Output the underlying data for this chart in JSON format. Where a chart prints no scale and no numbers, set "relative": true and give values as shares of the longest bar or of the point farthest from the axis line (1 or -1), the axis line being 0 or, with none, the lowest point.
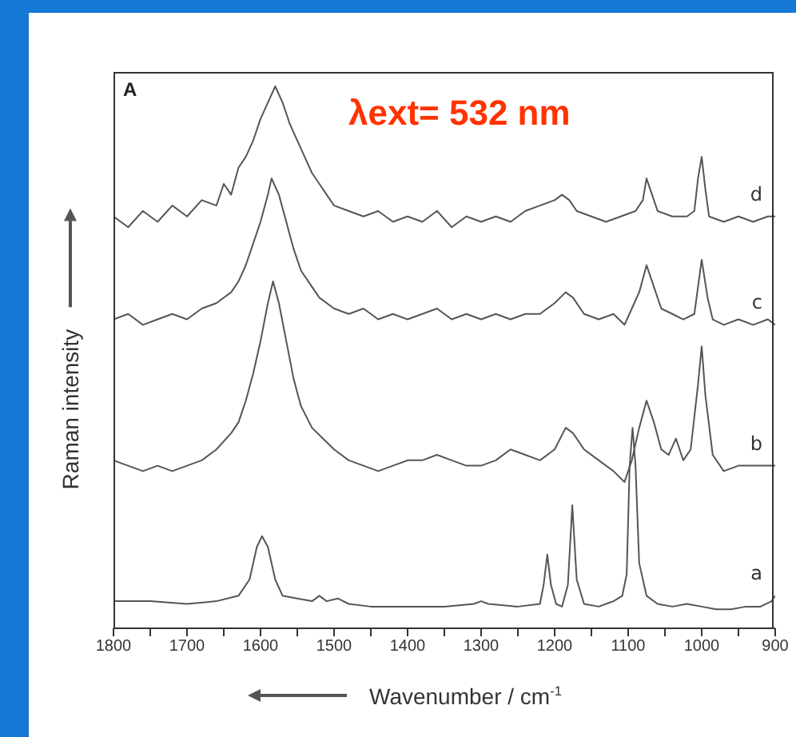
{
  "chart_data": {
    "type": "line",
    "relative": true,
    "xlabel": "Wavenumber / cm$^{-1}$",
    "ylabel": "Raman intensity",
    "annotations": [
      "A",
      "λext= 532 nm"
    ],
    "xlim": [
      1800,
      900
    ],
    "xticks": [
      1800,
      {
        "value": 1750,
        "label": null
      },
      1700,
      {
        "value": 1650,
        "label": null
      },
      1600,
      {
        "value": 1550,
        "label": null
      },
      1500,
      {
        "value": 1450,
        "label": null
      },
      1400,
      {
        "value": 1350,
        "label": null
      },
      1300,
      {
        "value": 1250,
        "label": null
      },
      1200,
      {
        "value": 1150,
        "label": null
      },
      1100,
      {
        "value": 1050,
        "label": null
      },
      1000,
      {
        "value": 950,
        "label": null
      },
      900
    ],
    "marker": "none",
    "line_style": "solid",
    "series": [
      {
        "name": "d",
        "color": "#555555",
        "x": [
          1800,
          1780,
          1760,
          1740,
          1720,
          1700,
          1680,
          1660,
          1650,
          1640,
          1630,
          1620,
          1610,
          1600,
          1590,
          1580,
          1570,
          1560,
          1550,
          1540,
          1530,
          1520,
          1510,
          1500,
          1480,
          1460,
          1440,
          1420,
          1400,
          1380,
          1360,
          1340,
          1320,
          1300,
          1280,
          1260,
          1240,
          1220,
          1200,
          1190,
          1180,
          1170,
          1150,
          1130,
          1110,
          1090,
          1080,
          1075,
          1070,
          1060,
          1040,
          1020,
          1010,
          1005,
          1000,
          995,
          990,
          970,
          950,
          930,
          910,
          900
        ],
        "values": [
          0.76,
          0.74,
          0.77,
          0.75,
          0.78,
          0.76,
          0.79,
          0.78,
          0.82,
          0.8,
          0.85,
          0.87,
          0.9,
          0.94,
          0.97,
          1.0,
          0.97,
          0.93,
          0.9,
          0.87,
          0.84,
          0.82,
          0.8,
          0.78,
          0.77,
          0.76,
          0.77,
          0.75,
          0.76,
          0.75,
          0.77,
          0.74,
          0.76,
          0.75,
          0.76,
          0.75,
          0.77,
          0.78,
          0.79,
          0.8,
          0.79,
          0.77,
          0.76,
          0.75,
          0.76,
          0.77,
          0.79,
          0.83,
          0.81,
          0.77,
          0.76,
          0.76,
          0.77,
          0.83,
          0.87,
          0.81,
          0.76,
          0.75,
          0.76,
          0.75,
          0.76,
          0.76
        ]
      },
      {
        "name": "c",
        "color": "#555555",
        "x": [
          1800,
          1780,
          1760,
          1740,
          1720,
          1700,
          1680,
          1660,
          1640,
          1630,
          1620,
          1610,
          1600,
          1590,
          1585,
          1575,
          1565,
          1555,
          1545,
          1530,
          1520,
          1500,
          1480,
          1460,
          1440,
          1420,
          1400,
          1380,
          1360,
          1340,
          1320,
          1300,
          1280,
          1260,
          1240,
          1220,
          1200,
          1185,
          1175,
          1160,
          1140,
          1120,
          1105,
          1095,
          1085,
          1075,
          1065,
          1055,
          1040,
          1025,
          1010,
          1000,
          992,
          985,
          970,
          950,
          930,
          910,
          900
        ],
        "values": [
          0.57,
          0.58,
          0.56,
          0.57,
          0.58,
          0.57,
          0.59,
          0.6,
          0.62,
          0.64,
          0.67,
          0.71,
          0.75,
          0.8,
          0.83,
          0.8,
          0.75,
          0.7,
          0.66,
          0.63,
          0.61,
          0.59,
          0.58,
          0.59,
          0.57,
          0.58,
          0.57,
          0.58,
          0.59,
          0.57,
          0.58,
          0.57,
          0.58,
          0.57,
          0.58,
          0.58,
          0.6,
          0.62,
          0.61,
          0.58,
          0.57,
          0.58,
          0.56,
          0.59,
          0.62,
          0.67,
          0.63,
          0.59,
          0.58,
          0.57,
          0.58,
          0.68,
          0.61,
          0.57,
          0.56,
          0.57,
          0.56,
          0.57,
          0.56
        ]
      },
      {
        "name": "b",
        "color": "#555555",
        "x": [
          1800,
          1780,
          1760,
          1740,
          1720,
          1700,
          1680,
          1660,
          1640,
          1630,
          1620,
          1610,
          1600,
          1590,
          1583,
          1575,
          1565,
          1555,
          1545,
          1530,
          1515,
          1500,
          1480,
          1460,
          1440,
          1420,
          1400,
          1380,
          1360,
          1340,
          1320,
          1300,
          1280,
          1260,
          1240,
          1220,
          1200,
          1185,
          1175,
          1160,
          1140,
          1120,
          1105,
          1095,
          1085,
          1075,
          1065,
          1055,
          1045,
          1035,
          1025,
          1015,
          1005,
          1000,
          995,
          985,
          970,
          950,
          930,
          910,
          900
        ],
        "values": [
          0.31,
          0.3,
          0.29,
          0.3,
          0.29,
          0.3,
          0.31,
          0.33,
          0.36,
          0.38,
          0.42,
          0.47,
          0.53,
          0.6,
          0.64,
          0.6,
          0.53,
          0.46,
          0.41,
          0.37,
          0.35,
          0.33,
          0.31,
          0.3,
          0.29,
          0.3,
          0.31,
          0.31,
          0.32,
          0.31,
          0.3,
          0.3,
          0.31,
          0.33,
          0.32,
          0.31,
          0.33,
          0.37,
          0.36,
          0.33,
          0.31,
          0.29,
          0.27,
          0.31,
          0.37,
          0.42,
          0.38,
          0.33,
          0.32,
          0.35,
          0.31,
          0.33,
          0.45,
          0.52,
          0.43,
          0.32,
          0.29,
          0.3,
          0.3,
          0.3,
          0.3
        ]
      },
      {
        "name": "a",
        "color": "#555555",
        "x": [
          1800,
          1750,
          1700,
          1660,
          1630,
          1615,
          1605,
          1598,
          1590,
          1580,
          1570,
          1550,
          1530,
          1520,
          1510,
          1495,
          1480,
          1450,
          1400,
          1350,
          1310,
          1300,
          1290,
          1250,
          1220,
          1215,
          1210,
          1205,
          1198,
          1190,
          1182,
          1176,
          1170,
          1160,
          1140,
          1120,
          1108,
          1102,
          1098,
          1094,
          1090,
          1085,
          1075,
          1060,
          1040,
          1020,
          1000,
          980,
          960,
          940,
          920,
          905,
          900
        ],
        "values": [
          0.05,
          0.05,
          0.045,
          0.05,
          0.06,
          0.09,
          0.15,
          0.17,
          0.15,
          0.09,
          0.06,
          0.055,
          0.05,
          0.06,
          0.05,
          0.055,
          0.045,
          0.04,
          0.04,
          0.04,
          0.045,
          0.05,
          0.045,
          0.04,
          0.045,
          0.08,
          0.136,
          0.08,
          0.045,
          0.04,
          0.08,
          0.227,
          0.09,
          0.045,
          0.04,
          0.05,
          0.06,
          0.1,
          0.3,
          0.37,
          0.3,
          0.12,
          0.06,
          0.045,
          0.04,
          0.045,
          0.04,
          0.035,
          0.035,
          0.04,
          0.04,
          0.05,
          0.06
        ]
      }
    ]
  }
}
